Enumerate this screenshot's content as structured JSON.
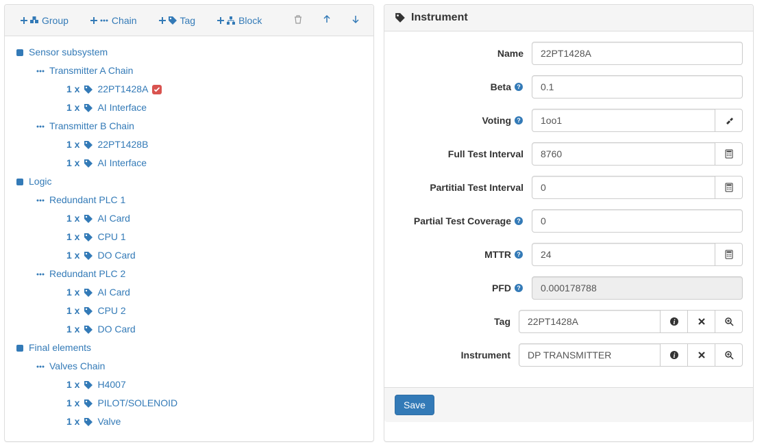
{
  "toolbar": {
    "group": "Group",
    "chain": "Chain",
    "tag": "Tag",
    "block": "Block"
  },
  "tree": [
    {
      "level": 0,
      "type": "group",
      "label": "Sensor subsystem"
    },
    {
      "level": 1,
      "type": "chain",
      "label": "Transmitter A Chain"
    },
    {
      "level": 2,
      "type": "tag",
      "count": "1 x",
      "label": "22PT1428A",
      "selected": true
    },
    {
      "level": 2,
      "type": "tag",
      "count": "1 x",
      "label": "AI Interface"
    },
    {
      "level": 1,
      "type": "chain",
      "label": "Transmitter B Chain"
    },
    {
      "level": 2,
      "type": "tag",
      "count": "1 x",
      "label": "22PT1428B"
    },
    {
      "level": 2,
      "type": "tag",
      "count": "1 x",
      "label": "AI Interface"
    },
    {
      "level": 0,
      "type": "group",
      "label": "Logic"
    },
    {
      "level": 1,
      "type": "chain",
      "label": "Redundant PLC 1"
    },
    {
      "level": 2,
      "type": "tag",
      "count": "1 x",
      "label": "AI Card"
    },
    {
      "level": 2,
      "type": "tag",
      "count": "1 x",
      "label": "CPU 1"
    },
    {
      "level": 2,
      "type": "tag",
      "count": "1 x",
      "label": "DO Card"
    },
    {
      "level": 1,
      "type": "chain",
      "label": "Redundant PLC 2"
    },
    {
      "level": 2,
      "type": "tag",
      "count": "1 x",
      "label": "AI Card"
    },
    {
      "level": 2,
      "type": "tag",
      "count": "1 x",
      "label": "CPU 2"
    },
    {
      "level": 2,
      "type": "tag",
      "count": "1 x",
      "label": "DO Card"
    },
    {
      "level": 0,
      "type": "group",
      "label": "Final elements"
    },
    {
      "level": 1,
      "type": "chain",
      "label": "Valves Chain"
    },
    {
      "level": 2,
      "type": "tag",
      "count": "1 x",
      "label": "H4007"
    },
    {
      "level": 2,
      "type": "tag",
      "count": "1 x",
      "label": "PILOT/SOLENOID"
    },
    {
      "level": 2,
      "type": "tag",
      "count": "1 x",
      "label": "Valve"
    }
  ],
  "detail": {
    "title": "Instrument",
    "fields": {
      "name": {
        "label": "Name",
        "value": "22PT1428A",
        "help": false,
        "addons": []
      },
      "beta": {
        "label": "Beta",
        "value": "0.1",
        "help": true,
        "addons": []
      },
      "voting": {
        "label": "Voting",
        "value": "1oo1",
        "help": true,
        "addons": [
          "gavel"
        ]
      },
      "fti": {
        "label": "Full Test Interval",
        "value": "8760",
        "help": false,
        "addons": [
          "calc"
        ]
      },
      "pti": {
        "label": "Partitial Test Interval",
        "value": "0",
        "help": false,
        "addons": [
          "calc"
        ]
      },
      "ptc": {
        "label": "Partial Test Coverage",
        "value": "0",
        "help": true,
        "addons": []
      },
      "mttr": {
        "label": "MTTR",
        "value": "24",
        "help": true,
        "addons": [
          "calc"
        ]
      },
      "pfd": {
        "label": "PFD",
        "value": "0.000178788",
        "help": true,
        "addons": [],
        "readonly": true
      },
      "tag": {
        "label": "Tag",
        "value": "22PT1428A",
        "help": false,
        "addons": [
          "info",
          "remove",
          "zoom"
        ]
      },
      "instrument": {
        "label": "Instrument",
        "value": "DP TRANSMITTER",
        "help": false,
        "addons": [
          "info",
          "remove",
          "zoom"
        ]
      }
    },
    "save": "Save"
  },
  "colors": {
    "link": "#337ab7",
    "panel_border": "#dddddd",
    "header_bg": "#f5f5f5",
    "input_border": "#cccccc",
    "primary": "#337ab7",
    "badge": "#d9534f"
  }
}
